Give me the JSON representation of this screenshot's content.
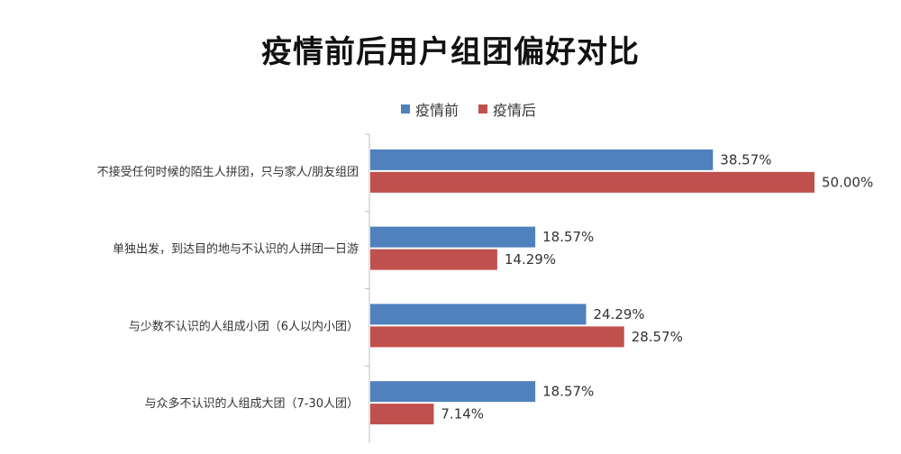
{
  "chart_data": {
    "type": "bar",
    "orientation": "horizontal",
    "title": "疫情前后用户组团偏好对比",
    "categories": [
      "不接受任何时候的陌生人拼团，只与家人/朋友组团",
      "单独出发，到达目的地与不认识的人拼团一日游",
      "与少数不认识的人组成小团（6人以内小团）",
      "与众多不认识的人组成大团（7-30人团）"
    ],
    "series": [
      {
        "name": "疫情前",
        "color": "#4f81bd",
        "values": [
          38.57,
          18.57,
          24.29,
          18.57
        ],
        "labels": [
          "38.57%",
          "18.57%",
          "24.29%",
          "18.57%"
        ]
      },
      {
        "name": "疫情后",
        "color": "#c0504d",
        "values": [
          50.0,
          14.29,
          28.57,
          7.14
        ],
        "labels": [
          "50.00%",
          "14.29%",
          "28.57%",
          "7.14%"
        ]
      }
    ],
    "xlim": [
      0,
      50
    ],
    "legend_position": "top-center",
    "grid": false
  }
}
